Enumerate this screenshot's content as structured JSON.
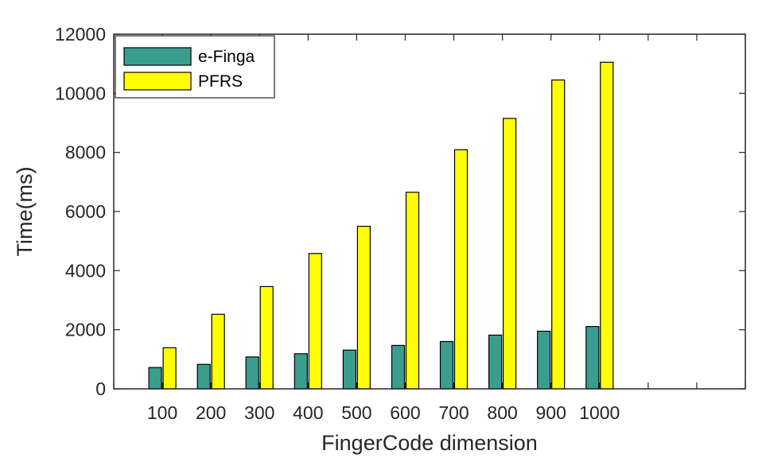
{
  "chart_data": {
    "type": "bar",
    "title": "",
    "xlabel": "FingerCode dimension",
    "ylabel": "Time(ms)",
    "categories": [
      "100",
      "200",
      "300",
      "400",
      "500",
      "600",
      "700",
      "800",
      "900",
      "1000"
    ],
    "x_range": [
      0,
      1300
    ],
    "ylim": [
      0,
      12000
    ],
    "y_ticks": [
      0,
      2000,
      4000,
      6000,
      8000,
      10000,
      12000
    ],
    "y_tick_labels": [
      "0",
      "2000",
      "4000",
      "6000",
      "8000",
      "10000",
      "12000"
    ],
    "grid": false,
    "legend": "top-left",
    "series": [
      {
        "name": "e-Finga",
        "color": "#3a9e8f",
        "values": [
          720,
          830,
          1080,
          1190,
          1310,
          1470,
          1600,
          1820,
          1950,
          2110
        ]
      },
      {
        "name": "PFRS",
        "color": "#ffff00",
        "values": [
          1390,
          2520,
          3460,
          4580,
          5500,
          6650,
          8090,
          9150,
          10450,
          11050
        ]
      }
    ]
  }
}
